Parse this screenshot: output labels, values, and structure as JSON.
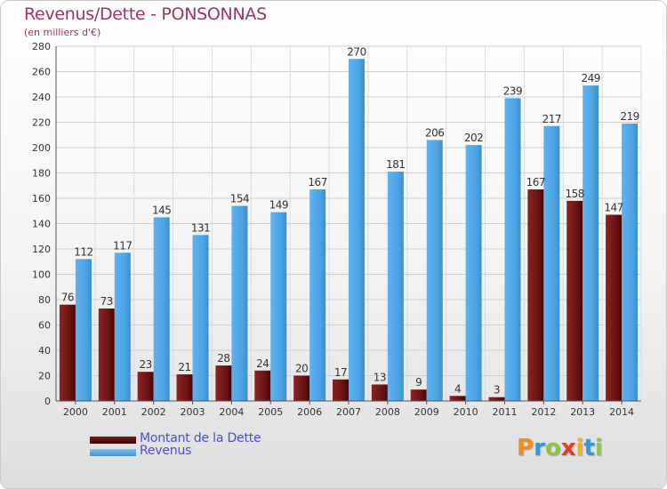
{
  "title": "Revenus/Dette - PONSONNAS",
  "subtitle": "(en milliers d'€)",
  "logo": {
    "letters": [
      {
        "char": "P",
        "color": "#f28c1e"
      },
      {
        "char": "r",
        "color": "#2d9bd8"
      },
      {
        "char": "o",
        "color": "#8cc63f"
      },
      {
        "char": "x",
        "color": "#e23b2a"
      },
      {
        "char": "i",
        "color": "#f2b21e"
      },
      {
        "char": "t",
        "color": "#2d9bd8"
      },
      {
        "char": "i",
        "color": "#8cc63f"
      }
    ]
  },
  "colors": {
    "debt": "#6e1414",
    "revenue": "#4fa6e6",
    "title": "#a0306a",
    "legend_text": "#4d4dcc"
  },
  "chart_data": {
    "type": "bar",
    "title": "Revenus/Dette - PONSONNAS",
    "subtitle": "(en milliers d'€)",
    "xlabel": "",
    "ylabel": "",
    "categories": [
      "2000",
      "2001",
      "2002",
      "2003",
      "2004",
      "2005",
      "2006",
      "2007",
      "2008",
      "2009",
      "2010",
      "2011",
      "2012",
      "2013",
      "2014"
    ],
    "series": [
      {
        "name": "Montant de la Dette",
        "values": [
          76,
          73,
          23,
          21,
          28,
          24,
          20,
          17,
          13,
          9,
          4,
          3,
          167,
          158,
          147
        ]
      },
      {
        "name": "Revenus",
        "values": [
          112,
          117,
          145,
          131,
          154,
          149,
          167,
          270,
          181,
          206,
          202,
          239,
          217,
          249,
          219
        ]
      }
    ],
    "ylim": [
      0,
      280
    ],
    "yticks": [
      0,
      20,
      40,
      60,
      80,
      100,
      120,
      140,
      160,
      180,
      200,
      220,
      240,
      260,
      280
    ],
    "grid": true,
    "legend": "bottom-left"
  }
}
